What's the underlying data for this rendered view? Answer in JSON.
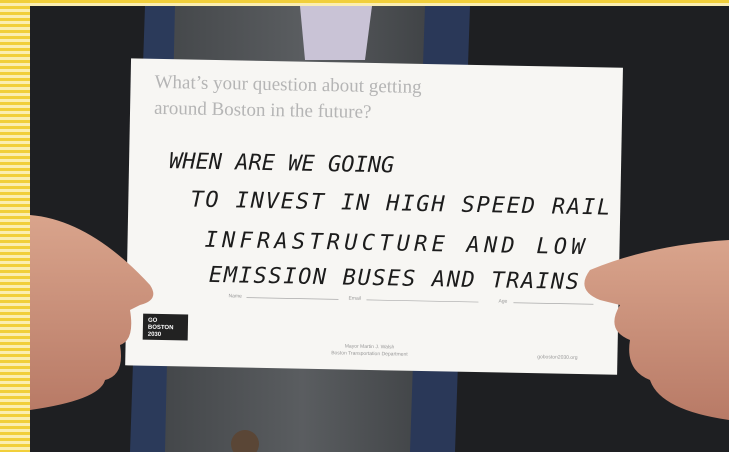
{
  "card": {
    "prompt_lines": [
      "What’s your question about getting",
      "around Boston in the future?"
    ],
    "answer_lines": [
      "WHEN ARE WE GOING",
      "TO INVEST IN HIGH SPEED RAIL",
      "INFRASTRUCTURE AND LOW",
      "EMISSION BUSES AND TRAINS"
    ],
    "fields": [
      "Name",
      "Email",
      "Age"
    ],
    "logo": [
      "GO",
      "BOSTON",
      "2030"
    ],
    "footer_lines": [
      "Mayor Martin J. Walsh",
      "Boston Transportation Department"
    ],
    "website": "goboston2030.org"
  }
}
